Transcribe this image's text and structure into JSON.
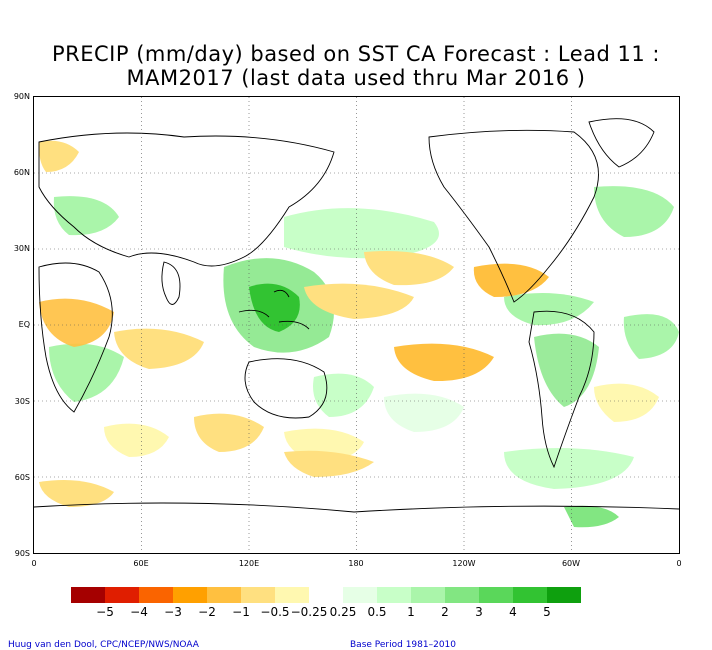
{
  "title": {
    "line1": "PRECIP (mm/day) based on SST CA Forecast : Lead 11 :",
    "line2": "MAM2017 (last data used thru Mar 2016 )"
  },
  "axes": {
    "lat_labels": [
      "90N",
      "60N",
      "30N",
      "EQ",
      "30S",
      "60S",
      "90S"
    ],
    "lon_labels": [
      "0",
      "60E",
      "120E",
      "180",
      "120W",
      "60W",
      "0"
    ]
  },
  "legend": {
    "colors": [
      "#a50000",
      "#e01e00",
      "#fa6400",
      "#ffa000",
      "#ffc040",
      "#ffe080",
      "#fff8b0",
      "#ffffff",
      "#e6ffe6",
      "#c8ffc8",
      "#aaf5aa",
      "#82e682",
      "#5ad75a",
      "#32c332",
      "#0ea00e"
    ],
    "labels": [
      "−5",
      "−4",
      "−3",
      "−2",
      "−1",
      "−0.5",
      "−0.25",
      "0.25",
      "0.5",
      "1",
      "2",
      "3",
      "4",
      "5"
    ]
  },
  "credits": {
    "left": "Huug van den Dool, CPC/NCEP/NWS/NOAA",
    "right": "Base Period 1981–2010"
  }
}
